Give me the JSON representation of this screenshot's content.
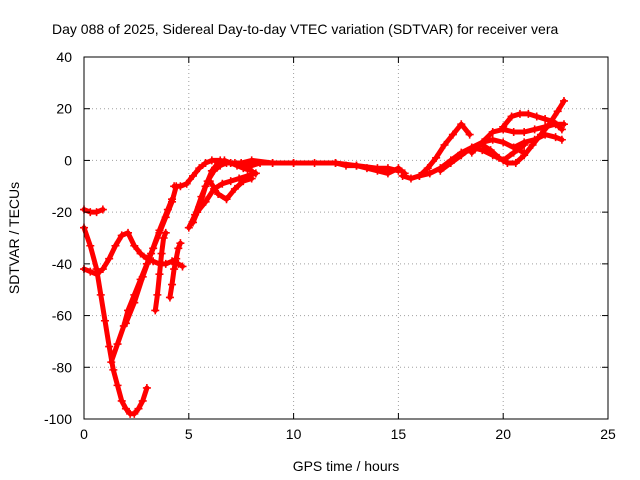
{
  "chart_data": {
    "type": "scatter",
    "title": "Day 088 of 2025, Sidereal Day-to-day VTEC variation (SDTVAR) for receiver vera",
    "xlabel": "GPS time / hours",
    "ylabel": "SDTVAR / TECUs",
    "xlim": [
      0,
      25
    ],
    "ylim": [
      -100,
      40
    ],
    "xticks": [
      0,
      5,
      10,
      15,
      20,
      25
    ],
    "yticks": [
      -100,
      -80,
      -60,
      -40,
      -20,
      0,
      20,
      40
    ],
    "xtick_labels": [
      "0",
      "5",
      "10",
      "15",
      "20",
      "25"
    ],
    "ytick_labels": [
      "-100",
      "-80",
      "-60",
      "-40",
      "-20",
      "0",
      "20",
      "40"
    ],
    "grid": true,
    "marker": "+",
    "color": "#ff0000",
    "series": [
      {
        "name": "s1",
        "x": [
          0.0,
          0.3,
          0.6,
          0.9
        ],
        "y": [
          -19,
          -20,
          -20,
          -19
        ]
      },
      {
        "name": "s2",
        "x": [
          0.0,
          0.3,
          0.6,
          0.9,
          1.2,
          1.5,
          1.8,
          2.1,
          2.4,
          2.7,
          3.0,
          3.3,
          3.6,
          3.9,
          4.2,
          4.5,
          4.7
        ],
        "y": [
          -42,
          -43,
          -44,
          -42,
          -38,
          -33,
          -29,
          -28,
          -33,
          -36,
          -38,
          -39,
          -40,
          -40,
          -39,
          -40,
          -41
        ]
      },
      {
        "name": "s3",
        "x": [
          0.0,
          0.3,
          0.6,
          0.8,
          1.0,
          1.2,
          1.4,
          1.6,
          1.8,
          2.0,
          2.2,
          2.4,
          2.6,
          2.8,
          3.0
        ],
        "y": [
          -26,
          -33,
          -42,
          -52,
          -62,
          -72,
          -81,
          -87,
          -93,
          -96,
          -98,
          -98,
          -96,
          -93,
          -88
        ]
      },
      {
        "name": "s4",
        "x": [
          1.3,
          1.6,
          1.9,
          2.1,
          2.4,
          2.7,
          3.0,
          3.3,
          3.6,
          3.9,
          4.2,
          4.4
        ],
        "y": [
          -78,
          -71,
          -64,
          -58,
          -52,
          -46,
          -40,
          -34,
          -28,
          -22,
          -16,
          -10
        ]
      },
      {
        "name": "s5",
        "x": [
          2.0,
          2.4,
          2.8,
          3.2,
          3.6,
          4.0,
          4.2
        ],
        "y": [
          -63,
          -55,
          -45,
          -36,
          -27,
          -19,
          -15
        ]
      },
      {
        "name": "s6",
        "x": [
          3.4,
          3.5,
          3.6,
          3.7,
          3.8,
          3.9
        ],
        "y": [
          -58,
          -52,
          -44,
          -36,
          -30,
          -28
        ]
      },
      {
        "name": "s7",
        "x": [
          4.1,
          4.2,
          4.3,
          4.4,
          4.5,
          4.6
        ],
        "y": [
          -53,
          -48,
          -42,
          -38,
          -34,
          -32
        ]
      },
      {
        "name": "s8",
        "x": [
          4.3,
          4.6,
          4.9,
          5.2,
          5.5,
          5.8,
          6.1,
          6.5,
          7.0,
          7.5,
          8.0,
          9.0,
          10.0
        ],
        "y": [
          -10,
          -10,
          -9,
          -6,
          -3,
          -1,
          0,
          0,
          -1,
          -1,
          0,
          -1,
          -1
        ]
      },
      {
        "name": "s9",
        "x": [
          5.0,
          5.3,
          5.6,
          5.9,
          6.2,
          6.5,
          6.8,
          7.2,
          7.6,
          8.0,
          8.4
        ],
        "y": [
          -26,
          -21,
          -14,
          -8,
          -4,
          -2,
          -1,
          -1,
          -2,
          -2,
          -1
        ]
      },
      {
        "name": "s10",
        "x": [
          5.2,
          5.5,
          5.8,
          6.1,
          6.4,
          6.7,
          7.0,
          7.3,
          7.6,
          8.0
        ],
        "y": [
          -24,
          -18,
          -10,
          -4,
          -1,
          0,
          -1,
          -2,
          -3,
          -4
        ]
      },
      {
        "name": "s11",
        "x": [
          5.4,
          5.8,
          6.2,
          6.6,
          7.0,
          7.4,
          7.8,
          8.2
        ],
        "y": [
          -20,
          -16,
          -11,
          -9,
          -8,
          -7,
          -6,
          -5
        ]
      },
      {
        "name": "s12",
        "x": [
          6.0,
          6.4,
          6.8,
          7.2,
          7.6,
          8.0
        ],
        "y": [
          -8,
          -13,
          -15,
          -11,
          -8,
          -7
        ]
      },
      {
        "name": "s13",
        "x": [
          8.0,
          9.0,
          10.0,
          11.0,
          12.0,
          13.0,
          14.0,
          14.5,
          15.0
        ],
        "y": [
          -1,
          -1,
          -1,
          -1,
          -1,
          -2,
          -3,
          -3,
          -4
        ]
      },
      {
        "name": "s14",
        "x": [
          12.0,
          12.5,
          13.0,
          13.5,
          14.0,
          14.5,
          15.0,
          15.3
        ],
        "y": [
          -1,
          -2,
          -2,
          -3,
          -4,
          -5,
          -3,
          -5
        ]
      },
      {
        "name": "s15",
        "x": [
          15.2,
          15.6,
          16.0,
          16.4,
          16.8,
          17.2,
          17.6,
          18.0,
          18.4
        ],
        "y": [
          -6,
          -7,
          -6,
          -3,
          1,
          6,
          10,
          14,
          10
        ]
      },
      {
        "name": "s16",
        "x": [
          16.0,
          16.5,
          17.0,
          17.5,
          18.0,
          18.5,
          19.0,
          19.5,
          20.0,
          20.5,
          21.0
        ],
        "y": [
          -6,
          -5,
          -3,
          0,
          3,
          5,
          4,
          2,
          0,
          3,
          6
        ]
      },
      {
        "name": "s17",
        "x": [
          17.0,
          17.5,
          18.0,
          18.5,
          19.0,
          19.5,
          20.0,
          20.5,
          21.0
        ],
        "y": [
          -4,
          -1,
          2,
          5,
          7,
          8,
          7,
          5,
          3
        ]
      },
      {
        "name": "s18",
        "x": [
          18.5,
          19.0,
          19.5,
          20.0,
          20.5,
          21.0,
          21.5,
          22.0,
          22.5,
          22.9
        ],
        "y": [
          3,
          7,
          11,
          12,
          11,
          11,
          12,
          13,
          14,
          14
        ]
      },
      {
        "name": "s19",
        "x": [
          19.0,
          19.4,
          19.8,
          20.2,
          20.6,
          21.0,
          21.4,
          21.8,
          22.2,
          22.6,
          22.9
        ],
        "y": [
          6,
          4,
          1,
          -1,
          -1,
          2,
          6,
          10,
          14,
          19,
          23
        ]
      },
      {
        "name": "s20",
        "x": [
          20.0,
          20.4,
          20.8,
          21.2,
          21.6,
          22.0,
          22.4,
          22.8
        ],
        "y": [
          13,
          17,
          18,
          18,
          17,
          16,
          15,
          12
        ]
      },
      {
        "name": "s21",
        "x": [
          20.5,
          21.0,
          21.5,
          22.0,
          22.5,
          22.8
        ],
        "y": [
          5,
          7,
          8,
          10,
          9,
          8
        ]
      }
    ]
  }
}
